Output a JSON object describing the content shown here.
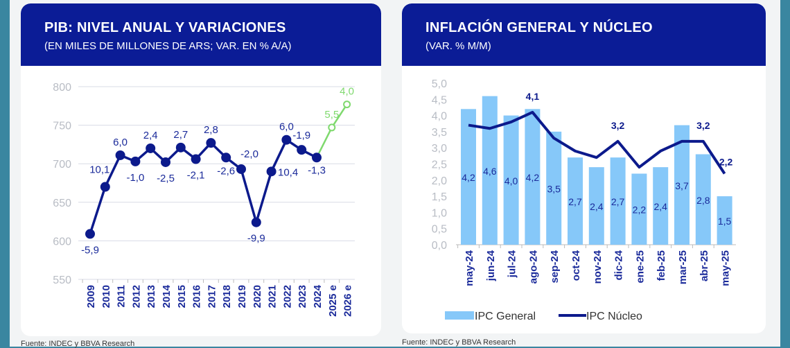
{
  "left": {
    "title": "PIB: NIVEL ANUAL Y VARIACIONES",
    "subtitle": "(EN MILES DE MILLONES DE ARS; VAR. EN % A/A)",
    "source": "Fuente: INDEC y BBVA Research"
  },
  "right": {
    "title": "INFLACIÓN GENERAL Y NÚCLEO",
    "subtitle": "(VAR. % M/M)",
    "source": "Fuente: INDEC y BBVA Research"
  },
  "chart_data": [
    {
      "type": "line",
      "ylim": [
        550,
        800
      ],
      "yticks": [
        "550",
        "600",
        "650",
        "700",
        "750",
        "800"
      ],
      "grid": true,
      "categories": [
        "2009",
        "2010",
        "2011",
        "2012",
        "2013",
        "2014",
        "2015",
        "2016",
        "2017",
        "2018",
        "2019",
        "2020",
        "2021",
        "2022",
        "2023",
        "2024",
        "2025 e",
        "2026 e"
      ],
      "values": [
        609,
        670,
        711,
        703,
        720,
        702,
        721,
        706,
        727,
        708,
        693,
        624,
        690,
        731,
        718,
        708,
        747,
        777
      ],
      "labels": [
        "-5,9",
        "10,1",
        "6,0",
        "-1,0",
        "2,4",
        "-2,5",
        "2,7",
        "-2,1",
        "2,8",
        "-2,6",
        "-2,0",
        "-9,9",
        "10,4",
        "6,0",
        "-1,9",
        "-1,3",
        "5,5",
        "4,0"
      ],
      "colors": {
        "actual": "#0c1a8c",
        "forecast": "#7fd96e"
      }
    },
    {
      "type": "bar",
      "ylim": [
        0,
        5
      ],
      "yticks": [
        "0,0",
        "0,5",
        "1,0",
        "1,5",
        "2,0",
        "2,5",
        "3,0",
        "3,5",
        "4,0",
        "4,5",
        "5,0"
      ],
      "legend": "bottom",
      "categories": [
        "may-24",
        "jun-24",
        "jul-24",
        "ago-24",
        "sep-24",
        "oct-24",
        "nov-24",
        "dic-24",
        "ene-25",
        "feb-25",
        "mar-25",
        "abr-25",
        "may-25"
      ],
      "series": [
        {
          "name": "IPC General",
          "type": "bar",
          "color": "#86c8f9",
          "values": [
            4.2,
            4.6,
            4.0,
            4.2,
            3.5,
            2.7,
            2.4,
            2.7,
            2.2,
            2.4,
            3.7,
            2.8,
            1.5
          ],
          "labels": [
            "4,2",
            "4,6",
            "4,0",
            "4,2",
            "3,5",
            "2,7",
            "2,4",
            "2,7",
            "2,2",
            "2,4",
            "3,7",
            "2,8",
            "1,5"
          ]
        },
        {
          "name": "IPC Núcleo",
          "type": "line",
          "color": "#0c1a8c",
          "values": [
            3.7,
            3.6,
            3.8,
            4.1,
            3.3,
            2.9,
            2.7,
            3.2,
            2.4,
            2.9,
            3.2,
            3.2,
            2.2
          ],
          "labels": [
            "",
            "",
            "",
            "4,1",
            "",
            "",
            "",
            "3,2",
            "",
            "",
            "",
            "3,2",
            "2,2"
          ]
        }
      ]
    }
  ]
}
